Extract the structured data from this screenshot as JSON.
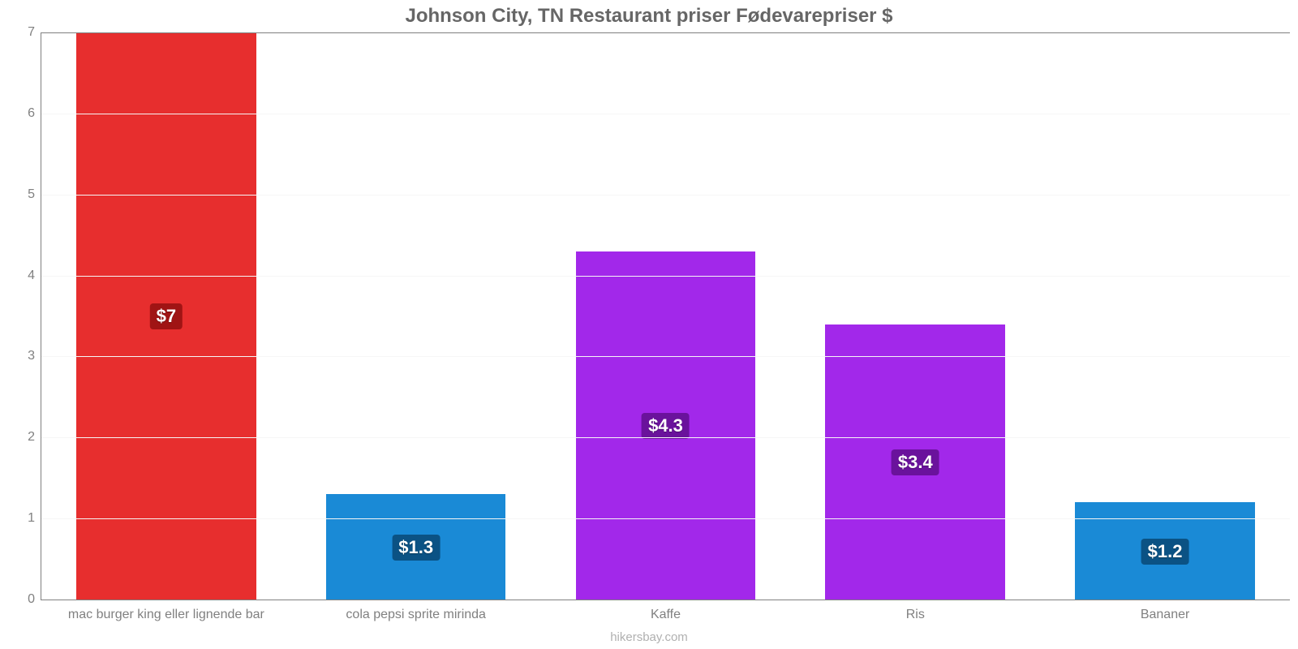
{
  "chart": {
    "type": "bar",
    "title": "Johnson City, TN Restaurant priser Fødevarepriser $",
    "title_color": "#666666",
    "title_fontsize": 24,
    "background_color": "#ffffff",
    "axis_color": "#808080",
    "tick_label_color": "#808080",
    "tick_fontsize": 16,
    "grid_color": "#f6f6f6",
    "ylim_min": 0,
    "ylim_max": 7,
    "ytick_step": 1,
    "yticks": [
      0,
      1,
      2,
      3,
      4,
      5,
      6,
      7
    ],
    "bar_width_pct": 72,
    "value_label_fontsize": 22,
    "x_label_fontsize": 16,
    "credit": "hikersbay.com",
    "credit_color": "#b0b0b0",
    "categories": [
      "mac burger king eller lignende bar",
      "cola pepsi sprite mirinda",
      "Kaffe",
      "Ris",
      "Bananer"
    ],
    "values": [
      7,
      1.3,
      4.3,
      3.4,
      1.2
    ],
    "value_labels": [
      "$7",
      "$1.3",
      "$4.3",
      "$3.4",
      "$1.2"
    ],
    "bar_colors": [
      "#e72e2e",
      "#1a8ad6",
      "#a228ea",
      "#a228ea",
      "#1a8ad6"
    ],
    "value_label_bg": [
      "#a01414",
      "#0b5284",
      "#6a129c",
      "#6a129c",
      "#0b5284"
    ],
    "value_label_text_color": "#ffffff"
  }
}
